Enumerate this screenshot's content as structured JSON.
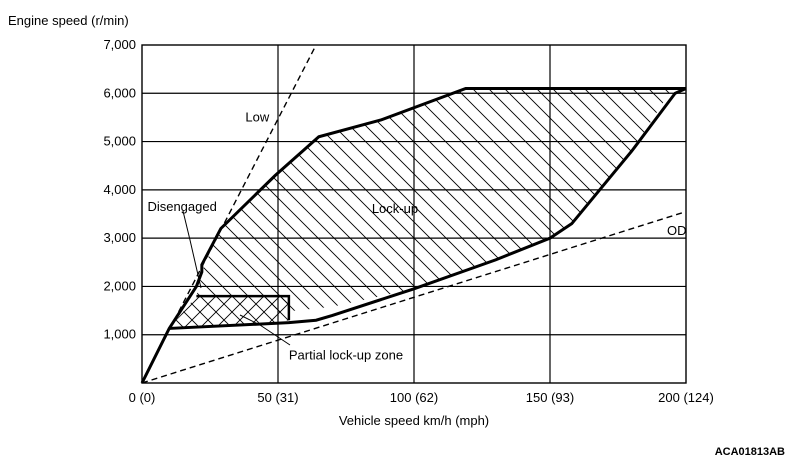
{
  "chart_data": {
    "type": "line",
    "ylabel": "Engine speed (r/min)",
    "xlabel": "Vehicle speed  km/h (mph)",
    "xlim": [
      0,
      200
    ],
    "ylim": [
      0,
      7000
    ],
    "grid": true,
    "x_ticks": [
      {
        "value": 0,
        "label": "0 (0)"
      },
      {
        "value": 50,
        "label": "50 (31)"
      },
      {
        "value": 100,
        "label": "100 (62)"
      },
      {
        "value": 150,
        "label": "150 (93)"
      },
      {
        "value": 200,
        "label": "200 (124)"
      }
    ],
    "y_ticks": [
      {
        "value": 1000,
        "label": "1,000"
      },
      {
        "value": 2000,
        "label": "2,000"
      },
      {
        "value": 3000,
        "label": "3,000"
      },
      {
        "value": 4000,
        "label": "4,000"
      },
      {
        "value": 5000,
        "label": "5,000"
      },
      {
        "value": 6000,
        "label": "6,000"
      },
      {
        "value": 7000,
        "label": "7,000"
      }
    ],
    "series": [
      {
        "name": "Low",
        "style": "dashed",
        "x": [
          0,
          64
        ],
        "y": [
          0,
          7000
        ]
      },
      {
        "name": "OD",
        "style": "dashed",
        "x": [
          0,
          200
        ],
        "y": [
          0,
          3550
        ]
      }
    ],
    "regions": [
      {
        "name": "Lock-up",
        "hatch": true,
        "x": [
          29,
          49,
          65,
          88,
          119,
          195,
          180,
          158,
          150,
          130,
          100,
          70,
          48,
          45,
          20,
          21,
          22,
          29
        ],
        "y": [
          3200,
          4300,
          5100,
          5450,
          6100,
          6100,
          4800,
          3300,
          3000,
          2550,
          1950,
          1580,
          1450,
          1800,
          1800,
          2000,
          2300,
          3200
        ]
      },
      {
        "name": "Partial lock-up zone",
        "hatch": true,
        "x": [
          10,
          20,
          54,
          54,
          52,
          36,
          10
        ],
        "y": [
          1130,
          1800,
          1800,
          1300,
          1270,
          1230,
          1130
        ]
      }
    ],
    "outline": {
      "x": [
        0,
        10,
        20,
        22,
        22,
        29,
        49,
        65,
        88,
        119,
        200,
        196,
        180,
        158,
        150,
        130,
        100,
        70,
        64,
        54,
        10
      ],
      "y": [
        0,
        1130,
        2000,
        2300,
        2450,
        3200,
        4300,
        5100,
        5450,
        6100,
        6100,
        6000,
        4800,
        3300,
        3000,
        2550,
        1950,
        1400,
        1300,
        1250,
        1130
      ]
    },
    "annotations": [
      {
        "text": "Low",
        "x": 38,
        "y": 5500
      },
      {
        "text": "OD",
        "x": 193,
        "y": 3150
      },
      {
        "text": "Lock-up",
        "x": 93,
        "y": 3600
      },
      {
        "text": "Disengaged",
        "x": 2,
        "y": 3650
      },
      {
        "text": "Partial lock-up zone",
        "x": 54,
        "y": 570
      }
    ],
    "figure_code": "ACA01813AB"
  }
}
